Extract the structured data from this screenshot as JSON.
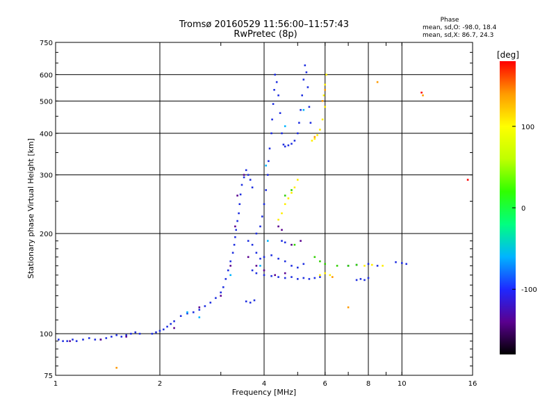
{
  "header": {
    "title_line1": "Tromsø 20160529 11:56:00–11:57:43",
    "title_line2": "RwPretec (8p)"
  },
  "phase_box": {
    "heading": "Phase",
    "line_o": "mean, sd,O: -98.0, 18.4",
    "line_x": "mean, sd,X:  86.7, 24.3"
  },
  "chart_data": {
    "type": "scatter",
    "xlabel": "Frequency [MHz]",
    "ylabel": "Stationary phase Virtual Height [km]",
    "xscale": "log",
    "yscale": "log",
    "xlim": [
      1,
      16
    ],
    "ylim": [
      75,
      750
    ],
    "xticks": [
      1,
      2,
      4,
      6,
      8,
      10,
      16
    ],
    "xtick_labels": [
      "1",
      "2",
      "4",
      "6",
      "8",
      "10",
      "16"
    ],
    "yticks": [
      75,
      100,
      200,
      300,
      400,
      500,
      600,
      750
    ],
    "ytick_labels": [
      "75",
      "100",
      "200",
      "300",
      "400",
      "500",
      "600",
      "750"
    ],
    "grid": true,
    "colorbar": {
      "label": "[deg]",
      "range": [
        -180,
        180
      ],
      "ticks": [
        100,
        0,
        -100
      ],
      "tick_labels": [
        "100",
        "0",
        "-100"
      ],
      "stops": [
        "#000000",
        "#5a008f",
        "#1e28ff",
        "#00b4ff",
        "#00ff80",
        "#30ff00",
        "#c0ff00",
        "#ffff00",
        "#ff9a00",
        "#ff0000"
      ]
    },
    "series": [
      {
        "color": "#1f2fe0",
        "points": [
          [
            1.02,
            96
          ],
          [
            1.05,
            95
          ],
          [
            1.08,
            95
          ],
          [
            1.12,
            96
          ],
          [
            1.15,
            95
          ],
          [
            1.2,
            96
          ],
          [
            1.25,
            97
          ],
          [
            1.3,
            96
          ],
          [
            1.35,
            96
          ],
          [
            1.4,
            97
          ],
          [
            1.45,
            98
          ],
          [
            1.5,
            99
          ],
          [
            1.55,
            98
          ],
          [
            1.6,
            99
          ],
          [
            1.65,
            100
          ],
          [
            1.7,
            101
          ],
          [
            1.75,
            100
          ],
          [
            1.9,
            100
          ],
          [
            1.95,
            101
          ],
          [
            2.0,
            102
          ],
          [
            2.05,
            103
          ],
          [
            2.1,
            105
          ],
          [
            2.15,
            107
          ],
          [
            2.2,
            109
          ],
          [
            2.3,
            113
          ],
          [
            2.4,
            115
          ],
          [
            2.5,
            116
          ],
          [
            2.6,
            118
          ],
          [
            2.7,
            121
          ],
          [
            2.8,
            124
          ],
          [
            2.9,
            128
          ],
          [
            3.0,
            133
          ],
          [
            3.05,
            138
          ],
          [
            3.1,
            146
          ],
          [
            3.15,
            155
          ],
          [
            3.2,
            165
          ],
          [
            3.25,
            175
          ],
          [
            3.28,
            185
          ],
          [
            3.3,
            195
          ],
          [
            3.32,
            205
          ],
          [
            3.35,
            218
          ],
          [
            3.38,
            230
          ],
          [
            3.4,
            245
          ],
          [
            3.42,
            262
          ],
          [
            3.45,
            280
          ],
          [
            3.5,
            295
          ],
          [
            3.55,
            310
          ],
          [
            3.6,
            300
          ],
          [
            3.65,
            290
          ],
          [
            3.7,
            275
          ],
          [
            3.55,
            125
          ],
          [
            3.65,
            124
          ],
          [
            3.75,
            126
          ],
          [
            3.6,
            190
          ],
          [
            3.7,
            185
          ],
          [
            3.8,
            175
          ],
          [
            3.9,
            168
          ],
          [
            4.0,
            170
          ],
          [
            4.2,
            172
          ],
          [
            4.4,
            168
          ],
          [
            4.6,
            165
          ],
          [
            4.8,
            160
          ],
          [
            5.0,
            158
          ],
          [
            5.2,
            162
          ],
          [
            3.8,
            200
          ],
          [
            3.9,
            210
          ],
          [
            3.95,
            225
          ],
          [
            4.0,
            245
          ],
          [
            4.05,
            270
          ],
          [
            4.1,
            300
          ],
          [
            4.12,
            330
          ],
          [
            4.15,
            360
          ],
          [
            4.2,
            400
          ],
          [
            4.22,
            440
          ],
          [
            4.25,
            490
          ],
          [
            4.28,
            540
          ],
          [
            4.3,
            600
          ],
          [
            4.35,
            570
          ],
          [
            4.4,
            520
          ],
          [
            4.45,
            460
          ],
          [
            4.5,
            400
          ],
          [
            4.55,
            370
          ],
          [
            4.6,
            365
          ],
          [
            4.7,
            368
          ],
          [
            4.8,
            372
          ],
          [
            4.9,
            380
          ],
          [
            5.0,
            400
          ],
          [
            5.05,
            430
          ],
          [
            5.1,
            470
          ],
          [
            5.15,
            520
          ],
          [
            5.2,
            580
          ],
          [
            5.25,
            640
          ],
          [
            5.3,
            610
          ],
          [
            5.35,
            550
          ],
          [
            5.4,
            480
          ],
          [
            5.45,
            430
          ],
          [
            3.7,
            155
          ],
          [
            3.8,
            152
          ],
          [
            4.0,
            150
          ],
          [
            4.2,
            149
          ],
          [
            4.4,
            148
          ],
          [
            4.6,
            147
          ],
          [
            4.8,
            148
          ],
          [
            5.0,
            146
          ],
          [
            5.2,
            147
          ],
          [
            5.4,
            146
          ],
          [
            5.6,
            147
          ],
          [
            5.8,
            148
          ],
          [
            7.4,
            145
          ],
          [
            7.6,
            146
          ],
          [
            7.8,
            145
          ],
          [
            8.0,
            147
          ],
          [
            7.0,
            160
          ],
          [
            7.4,
            161
          ],
          [
            8.0,
            162
          ],
          [
            8.5,
            160
          ],
          [
            9.6,
            164
          ],
          [
            10.0,
            163
          ],
          [
            10.3,
            162
          ],
          [
            4.5,
            190
          ],
          [
            4.6,
            188
          ]
        ]
      },
      {
        "color": "#5a008f",
        "points": [
          [
            1.1,
            95
          ],
          [
            1.35,
            96
          ],
          [
            1.6,
            98
          ],
          [
            2.2,
            104
          ],
          [
            2.6,
            120
          ],
          [
            3.0,
            130
          ],
          [
            3.2,
            160
          ],
          [
            3.3,
            210
          ],
          [
            3.35,
            260
          ],
          [
            3.5,
            300
          ],
          [
            3.6,
            170
          ],
          [
            3.8,
            160
          ],
          [
            4.0,
            155
          ],
          [
            4.3,
            150
          ],
          [
            4.6,
            152
          ],
          [
            4.4,
            210
          ],
          [
            4.5,
            205
          ],
          [
            4.8,
            185
          ],
          [
            5.1,
            190
          ]
        ]
      },
      {
        "color": "#00b4ff",
        "points": [
          [
            2.4,
            116
          ],
          [
            2.6,
            112
          ],
          [
            3.2,
            150
          ],
          [
            4.1,
            190
          ],
          [
            4.6,
            420
          ],
          [
            5.2,
            470
          ],
          [
            4.05,
            320
          ],
          [
            3.9,
            160
          ]
        ]
      },
      {
        "color": "#30d000",
        "points": [
          [
            4.6,
            260
          ],
          [
            4.8,
            270
          ],
          [
            5.6,
            170
          ],
          [
            5.8,
            165
          ],
          [
            6.0,
            162
          ],
          [
            6.5,
            160
          ],
          [
            7.0,
            160
          ],
          [
            7.4,
            161
          ],
          [
            4.9,
            185
          ]
        ]
      },
      {
        "color": "#ffee00",
        "points": [
          [
            4.4,
            220
          ],
          [
            4.5,
            230
          ],
          [
            4.6,
            245
          ],
          [
            4.7,
            255
          ],
          [
            4.8,
            265
          ],
          [
            4.9,
            275
          ],
          [
            5.0,
            290
          ],
          [
            5.5,
            380
          ],
          [
            5.6,
            385
          ],
          [
            5.7,
            395
          ],
          [
            5.8,
            410
          ],
          [
            5.9,
            440
          ],
          [
            6.0,
            480
          ],
          [
            5.95,
            520
          ],
          [
            6.0,
            560
          ],
          [
            6.05,
            600
          ],
          [
            5.8,
            150
          ],
          [
            6.0,
            152
          ],
          [
            6.2,
            150
          ],
          [
            7.8,
            160
          ],
          [
            8.2,
            161
          ],
          [
            8.8,
            160
          ]
        ]
      },
      {
        "color": "#ff9a00",
        "points": [
          [
            5.9,
            500
          ],
          [
            6.0,
            540
          ],
          [
            5.6,
            390
          ],
          [
            6.3,
            148
          ],
          [
            8.5,
            570
          ],
          [
            11.5,
            520
          ],
          [
            1.5,
            79
          ],
          [
            7.0,
            120
          ]
        ]
      },
      {
        "color": "#ff0000",
        "points": [
          [
            15.5,
            290
          ],
          [
            11.4,
            530
          ]
        ]
      }
    ]
  }
}
